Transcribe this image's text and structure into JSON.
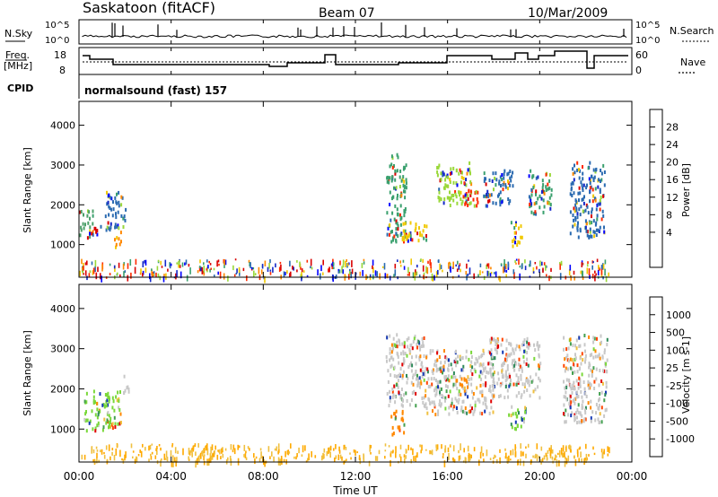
{
  "header": {
    "station": "Saskatoon (fitACF)",
    "beam": "Beam 07",
    "date": "10/Mar/2009"
  },
  "sky_panel": {
    "left_label": "N.Sky",
    "right_label": "N.Search",
    "ticks": [
      "10^5",
      "10^0"
    ]
  },
  "freq_panel": {
    "left_label_1": "Freq.",
    "left_label_2": "[MHz]",
    "left_ticks": [
      "18",
      "8"
    ],
    "right_ticks": [
      "60",
      "0"
    ],
    "right_label": "Nave"
  },
  "cpid": {
    "label": "CPID",
    "value": "normalsound (fast) 157"
  },
  "chart_data": [
    {
      "type": "heatmap",
      "name": "power",
      "ylabel": "Slant Range [km]",
      "xlabel": "Time UT",
      "y_ticks": [
        "4000",
        "3000",
        "2000",
        "1000"
      ],
      "y_values": [
        4000,
        3000,
        2000,
        1000
      ],
      "ylim": [
        180,
        4600
      ],
      "colorbar": {
        "label": "Power [dB]",
        "ticks": [
          "28",
          "24",
          "20",
          "16",
          "12",
          "8",
          "4"
        ],
        "colors": [
          "#d80000",
          "#ff2a00",
          "#ff8800",
          "#f0c800",
          "#9ad83a",
          "#3aa06e",
          "#2a6ab0",
          "#1428c8",
          "#0000ff"
        ]
      },
      "regions": [
        {
          "t": [
            0.0,
            0.6
          ],
          "r": [
            1200,
            1900
          ],
          "color": "#4ca06a"
        },
        {
          "t": [
            0.4,
            1.0
          ],
          "r": [
            1250,
            1500
          ],
          "color": "#d80000"
        },
        {
          "t": [
            1.1,
            2.0
          ],
          "r": [
            1400,
            2400
          ],
          "color": "#2a6ab0"
        },
        {
          "t": [
            1.5,
            1.8
          ],
          "r": [
            900,
            1400
          ],
          "color": "#ff8800"
        },
        {
          "t": [
            13.3,
            14.2
          ],
          "r": [
            1100,
            3300
          ],
          "color": "#3aa06e"
        },
        {
          "t": [
            14.0,
            15.2
          ],
          "r": [
            1100,
            1600
          ],
          "color": "#f0c800"
        },
        {
          "t": [
            15.5,
            17.0
          ],
          "r": [
            2000,
            3100
          ],
          "color": "#9ad83a"
        },
        {
          "t": [
            16.6,
            17.3
          ],
          "r": [
            2000,
            2400
          ],
          "color": "#ff2a00"
        },
        {
          "t": [
            17.5,
            18.8
          ],
          "r": [
            2000,
            2900
          ],
          "color": "#2a6ab0"
        },
        {
          "t": [
            18.6,
            19.2
          ],
          "r": [
            1000,
            1600
          ],
          "color": "#f0c800"
        },
        {
          "t": [
            19.5,
            20.5
          ],
          "r": [
            1800,
            2900
          ],
          "color": "#3aa06e"
        },
        {
          "t": [
            21.3,
            22.8
          ],
          "r": [
            1200,
            3100
          ],
          "color": "#2a6ab0"
        }
      ]
    },
    {
      "type": "heatmap",
      "name": "velocity",
      "ylabel": "Slant Range [km]",
      "xlabel": "Time UT",
      "y_ticks": [
        "4000",
        "3000",
        "2000",
        "1000"
      ],
      "y_values": [
        4000,
        3000,
        2000,
        1000
      ],
      "ylim": [
        180,
        4600
      ],
      "colorbar": {
        "label": "Velocity [m s-1]",
        "ticks": [
          "1000",
          "500",
          "100",
          "25",
          "-25",
          "-100",
          "-500",
          "-1000"
        ],
        "colors": [
          "#1438b4",
          "#2e8a5a",
          "#44a050",
          "#7ad83a",
          "#c8c8c8",
          "#f0c040",
          "#ff8800",
          "#ff4400",
          "#e00000"
        ]
      },
      "regions": [
        {
          "t": [
            0.2,
            1.8
          ],
          "r": [
            1000,
            2000
          ],
          "color": "#7ad83a"
        },
        {
          "t": [
            1.9,
            2.2
          ],
          "r": [
            1900,
            2400
          ],
          "color": "#c8c8c8"
        },
        {
          "t": [
            13.3,
            15.0
          ],
          "r": [
            1600,
            3400
          ],
          "color": "#c8c8c8"
        },
        {
          "t": [
            13.5,
            14.1
          ],
          "r": [
            900,
            1500
          ],
          "color": "#ff8800"
        },
        {
          "t": [
            15.0,
            18.0
          ],
          "r": [
            1400,
            3000
          ],
          "color": "#c8c8c8"
        },
        {
          "t": [
            16.3,
            16.9
          ],
          "r": [
            1900,
            2400
          ],
          "color": "#ff8800"
        },
        {
          "t": [
            17.8,
            20.0
          ],
          "r": [
            1800,
            3300
          ],
          "color": "#c8c8c8"
        },
        {
          "t": [
            18.6,
            19.4
          ],
          "r": [
            1000,
            1600
          ],
          "color": "#7ad83a"
        },
        {
          "t": [
            21.0,
            22.9
          ],
          "r": [
            1200,
            3400
          ],
          "color": "#c8c8c8"
        }
      ]
    }
  ],
  "x_axis": {
    "xlabel": "Time UT",
    "ticks": [
      "00:00",
      "04:00",
      "08:00",
      "12:00",
      "16:00",
      "20:00",
      "00:00"
    ],
    "xlim": [
      0,
      24
    ]
  }
}
